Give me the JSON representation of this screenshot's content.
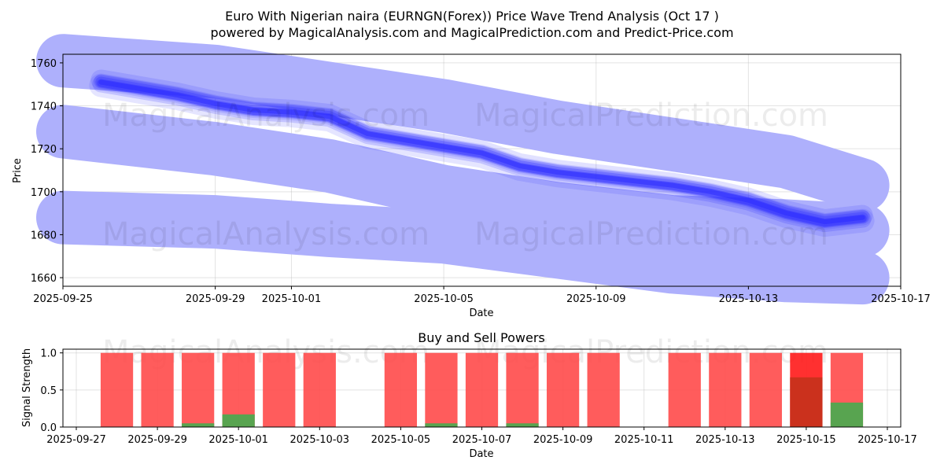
{
  "title": "Euro With Nigerian naira (EURNGN(Forex)) Price Wave Trend Analysis (Oct 17 )",
  "subtitle": "powered by MagicalAnalysis.com and MagicalPrediction.com and Predict-Price.com",
  "watermarks": [
    "MagicalAnalysis.com",
    "MagicalPrediction.com"
  ],
  "colors": {
    "band": "#aeb0fc",
    "wave": "#2b2bff",
    "sell": "#ff4a4a",
    "buy": "#4fa84f",
    "sell_dark_bar": "#ff1a1a",
    "overlap": "#c8321c"
  },
  "chart_data": [
    {
      "type": "area",
      "name": "price-wave",
      "xlabel": "Date",
      "ylabel": "Price",
      "grid": true,
      "x_range": [
        "2025-09-25",
        "2025-10-17"
      ],
      "ylim": [
        1656,
        1764
      ],
      "x_ticks": [
        "2025-09-25",
        "2025-09-29",
        "2025-10-01",
        "2025-10-05",
        "2025-10-09",
        "2025-10-13",
        "2025-10-17"
      ],
      "y_ticks": [
        1660,
        1680,
        1700,
        1720,
        1740,
        1760
      ],
      "bands": [
        {
          "name": "upper-band",
          "points": [
            [
              "2025-09-25",
              1761
            ],
            [
              "2025-09-29",
              1756
            ],
            [
              "2025-10-02",
              1748
            ],
            [
              "2025-10-05",
              1740
            ],
            [
              "2025-10-08",
              1730
            ],
            [
              "2025-10-11",
              1722
            ],
            [
              "2025-10-14",
              1714
            ],
            [
              "2025-10-16",
              1703
            ]
          ]
        },
        {
          "name": "middle-band",
          "points": [
            [
              "2025-09-25",
              1728
            ],
            [
              "2025-09-29",
              1720
            ],
            [
              "2025-10-02",
              1712
            ],
            [
              "2025-10-05",
              1700
            ],
            [
              "2025-10-08",
              1692
            ],
            [
              "2025-10-11",
              1686
            ],
            [
              "2025-10-14",
              1684
            ],
            [
              "2025-10-16",
              1682
            ]
          ]
        },
        {
          "name": "lower-band",
          "points": [
            [
              "2025-09-25",
              1688
            ],
            [
              "2025-09-29",
              1686
            ],
            [
              "2025-10-02",
              1682
            ],
            [
              "2025-10-05",
              1679
            ],
            [
              "2025-10-08",
              1672
            ],
            [
              "2025-10-11",
              1665
            ],
            [
              "2025-10-14",
              1661
            ],
            [
              "2025-10-16",
              1660
            ]
          ]
        }
      ],
      "wave": [
        [
          "2025-09-26",
          1751
        ],
        [
          "2025-09-28",
          1745
        ],
        [
          "2025-09-29",
          1741
        ],
        [
          "2025-09-30",
          1738
        ],
        [
          "2025-10-01",
          1737
        ],
        [
          "2025-10-02",
          1735
        ],
        [
          "2025-10-03",
          1727
        ],
        [
          "2025-10-04",
          1724
        ],
        [
          "2025-10-05",
          1721
        ],
        [
          "2025-10-06",
          1718
        ],
        [
          "2025-10-07",
          1712
        ],
        [
          "2025-10-08",
          1709
        ],
        [
          "2025-10-09",
          1707
        ],
        [
          "2025-10-10",
          1705
        ],
        [
          "2025-10-11",
          1703
        ],
        [
          "2025-10-12",
          1700
        ],
        [
          "2025-10-13",
          1696
        ],
        [
          "2025-10-14",
          1690
        ],
        [
          "2025-10-15",
          1686
        ],
        [
          "2025-10-16",
          1688
        ]
      ]
    },
    {
      "type": "bar",
      "name": "buy-sell-powers",
      "title": "Buy and Sell Powers",
      "xlabel": "Date",
      "ylabel": "Signal Strength",
      "grid": true,
      "x_range": [
        "2025-09-27",
        "2025-10-17"
      ],
      "ylim": [
        0,
        1.05
      ],
      "x_ticks": [
        "2025-09-27",
        "2025-09-29",
        "2025-10-01",
        "2025-10-03",
        "2025-10-05",
        "2025-10-07",
        "2025-10-09",
        "2025-10-11",
        "2025-10-13",
        "2025-10-15",
        "2025-10-17"
      ],
      "y_ticks": [
        "0.0",
        "0.5",
        "1.0"
      ],
      "series": [
        {
          "name": "sell",
          "dates": [
            "2025-09-28",
            "2025-09-29",
            "2025-09-30",
            "2025-10-01",
            "2025-10-02",
            "2025-10-03",
            "2025-10-05",
            "2025-10-06",
            "2025-10-07",
            "2025-10-08",
            "2025-10-09",
            "2025-10-10",
            "2025-10-12",
            "2025-10-13",
            "2025-10-14",
            "2025-10-15",
            "2025-10-16"
          ],
          "values": [
            1,
            1,
            1,
            1,
            1,
            1,
            1,
            1,
            1,
            1,
            1,
            1,
            1,
            1,
            1,
            1,
            1
          ]
        },
        {
          "name": "buy",
          "dates": [
            "2025-09-28",
            "2025-09-29",
            "2025-09-30",
            "2025-10-01",
            "2025-10-02",
            "2025-10-03",
            "2025-10-05",
            "2025-10-06",
            "2025-10-07",
            "2025-10-08",
            "2025-10-09",
            "2025-10-10",
            "2025-10-12",
            "2025-10-13",
            "2025-10-14",
            "2025-10-15",
            "2025-10-16"
          ],
          "values": [
            0,
            0,
            0.05,
            0.17,
            0,
            0,
            0,
            0.05,
            0,
            0.05,
            0,
            0,
            0,
            0,
            0,
            0.67,
            0.33
          ]
        }
      ]
    }
  ]
}
